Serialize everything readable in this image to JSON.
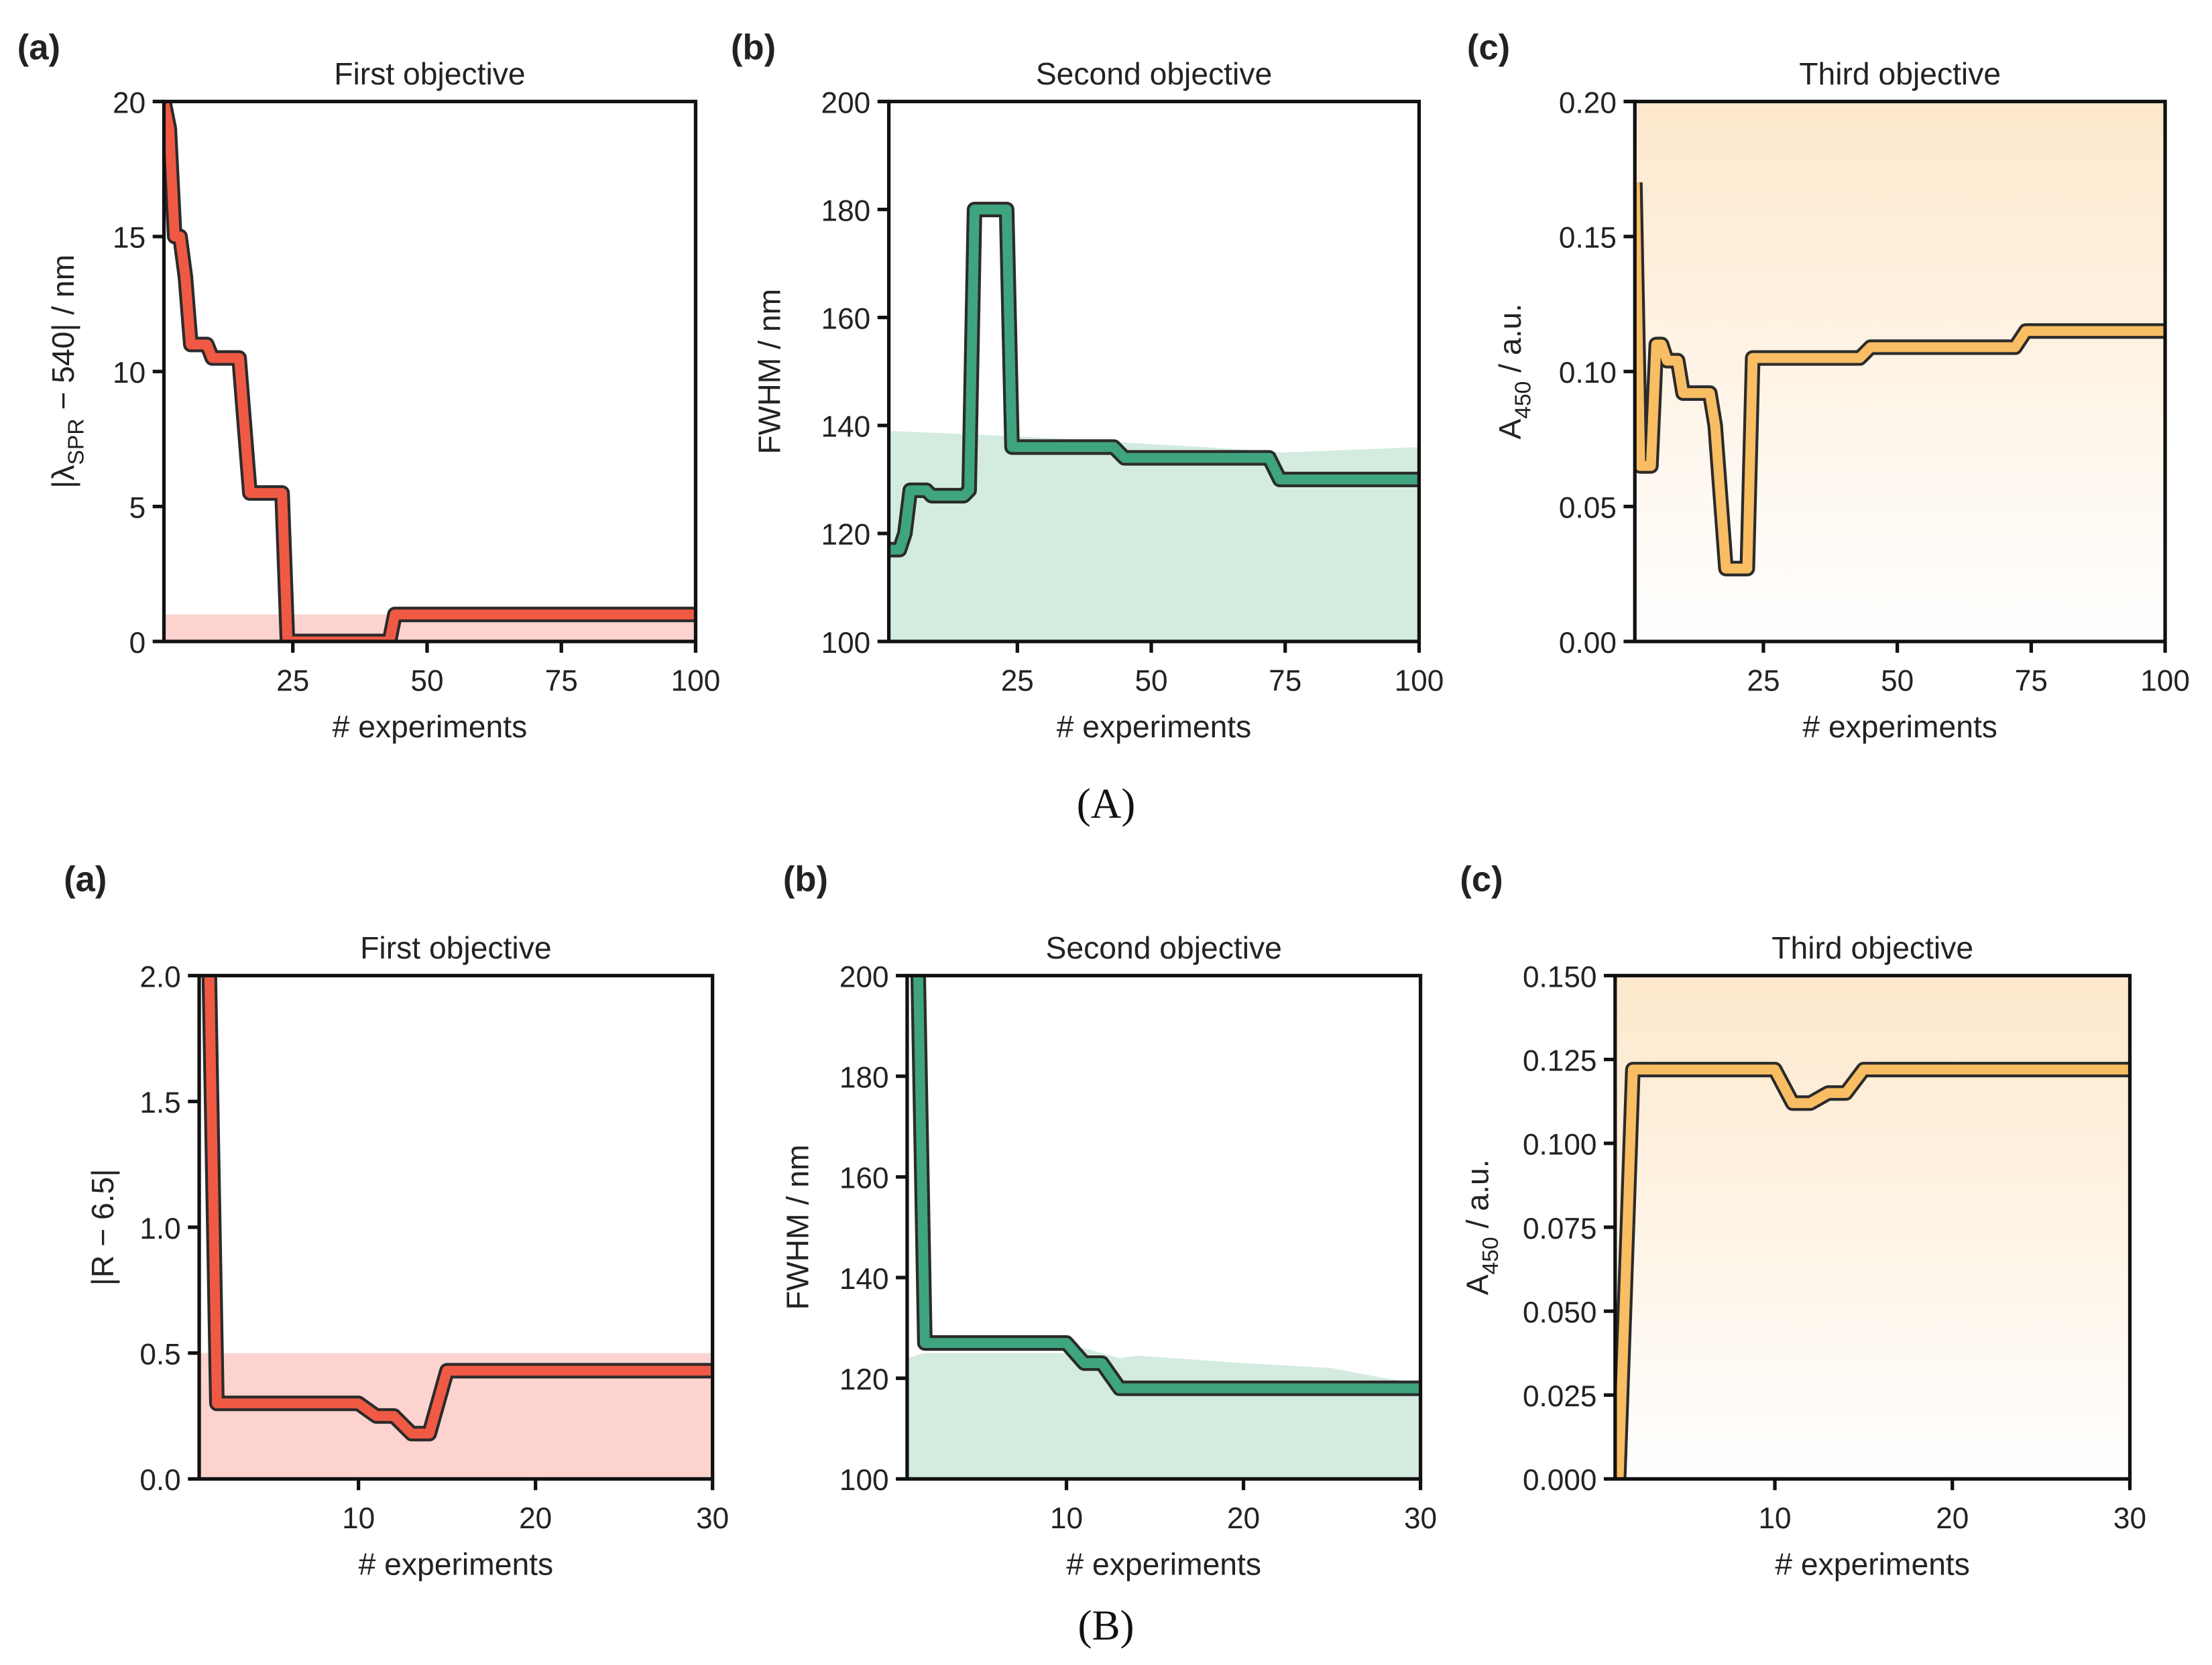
{
  "captions": {
    "A": "(A)",
    "B": "(B)"
  },
  "colors": {
    "red": "#f05a45",
    "red_band": "#fcd3cf",
    "green": "#3fa57e",
    "green_fill": "#d4ece0",
    "orange": "#f9bd63",
    "orange_bg": "#fde8cc",
    "outline": "#2b2b2b"
  },
  "chart_data": [
    {
      "id": "A-a",
      "type": "line",
      "panel_label": "(a)",
      "title": "First objective",
      "xlabel": "# experiments",
      "ylabel": {
        "main": "|λ",
        "sub": "SPR",
        "rest": " − 540| / nm"
      },
      "xlim": [
        1,
        100
      ],
      "ylim": [
        0,
        20
      ],
      "xticks": [
        25,
        50,
        75,
        100
      ],
      "xtick_labels": [
        "25",
        "50",
        "75",
        "100"
      ],
      "yticks": [
        0,
        5,
        10,
        15,
        20
      ],
      "ytick_labels": [
        "0",
        "5",
        "10",
        "15",
        "20"
      ],
      "color": "red",
      "band": [
        0,
        1
      ],
      "x": [
        1,
        2,
        3,
        4,
        5,
        6,
        9,
        10,
        15,
        17,
        23,
        24,
        43,
        44,
        100
      ],
      "y": [
        20,
        19,
        15,
        15,
        13.5,
        11,
        11,
        10.5,
        10.5,
        5.5,
        5.5,
        0,
        0,
        1,
        1
      ]
    },
    {
      "id": "A-b",
      "type": "line",
      "panel_label": "(b)",
      "title": "Second objective",
      "xlabel": "# experiments",
      "ylabel": {
        "main": "FWHM / nm",
        "sub": "",
        "rest": ""
      },
      "xlim": [
        1,
        100
      ],
      "ylim": [
        100,
        200
      ],
      "xticks": [
        25,
        50,
        75,
        100
      ],
      "xtick_labels": [
        "25",
        "50",
        "75",
        "100"
      ],
      "yticks": [
        100,
        120,
        140,
        160,
        180,
        200
      ],
      "ytick_labels": [
        "100",
        "120",
        "140",
        "160",
        "180",
        "200"
      ],
      "color": "green",
      "area_upper": {
        "x": [
          1,
          25,
          60,
          75,
          100
        ],
        "y": [
          139,
          138,
          136,
          135,
          136
        ]
      },
      "x": [
        1,
        3,
        4,
        5,
        8,
        9,
        15,
        16,
        17,
        23,
        24,
        43,
        45,
        72,
        74,
        100
      ],
      "y": [
        117,
        117,
        120,
        128,
        128,
        127,
        127,
        128,
        180,
        180,
        136,
        136,
        134,
        134,
        130,
        130
      ]
    },
    {
      "id": "A-c",
      "type": "line",
      "panel_label": "(c)",
      "title": "Third objective",
      "xlabel": "# experiments",
      "ylabel": {
        "main": "A",
        "sub": "450",
        "rest": " / a.u."
      },
      "xlim": [
        1,
        100
      ],
      "ylim": [
        0,
        0.2
      ],
      "xticks": [
        25,
        50,
        75,
        100
      ],
      "xtick_labels": [
        "25",
        "50",
        "75",
        "100"
      ],
      "yticks": [
        0,
        0.05,
        0.1,
        0.15,
        0.2
      ],
      "ytick_labels": [
        "0.00",
        "0.05",
        "0.10",
        "0.15",
        "0.20"
      ],
      "color": "orange",
      "gradient_bg": true,
      "x": [
        1,
        2,
        4,
        5,
        6,
        7,
        9,
        10,
        15,
        16,
        18,
        22,
        23,
        43,
        45,
        72,
        74,
        100
      ],
      "y": [
        0.17,
        0.065,
        0.065,
        0.11,
        0.11,
        0.104,
        0.104,
        0.092,
        0.092,
        0.08,
        0.027,
        0.027,
        0.105,
        0.105,
        0.109,
        0.109,
        0.115,
        0.115
      ]
    },
    {
      "id": "B-a",
      "type": "line",
      "panel_label": "(a)",
      "title": "First objective",
      "xlabel": "# experiments",
      "ylabel": {
        "main": "|R − 6.5|",
        "sub": "",
        "rest": ""
      },
      "xlim": [
        1,
        30
      ],
      "ylim": [
        0,
        2
      ],
      "xticks": [
        10,
        20,
        30
      ],
      "xtick_labels": [
        "10",
        "20",
        "30"
      ],
      "yticks": [
        0,
        0.5,
        1,
        1.5,
        2
      ],
      "ytick_labels": [
        "0.0",
        "0.5",
        "1.0",
        "1.5",
        "2.0"
      ],
      "color": "red",
      "band": [
        0,
        0.5
      ],
      "x": [
        1.5,
        2,
        10,
        11,
        12,
        13,
        14,
        15,
        30
      ],
      "y": [
        2.3,
        0.3,
        0.3,
        0.25,
        0.25,
        0.18,
        0.18,
        0.43,
        0.43
      ]
    },
    {
      "id": "B-b",
      "type": "line",
      "panel_label": "(b)",
      "title": "Second objective",
      "xlabel": "# experiments",
      "ylabel": {
        "main": "FWHM / nm",
        "sub": "",
        "rest": ""
      },
      "xlim": [
        1,
        30
      ],
      "ylim": [
        100,
        200
      ],
      "xticks": [
        10,
        20,
        30
      ],
      "xtick_labels": [
        "10",
        "20",
        "30"
      ],
      "yticks": [
        100,
        120,
        140,
        160,
        180,
        200
      ],
      "ytick_labels": [
        "100",
        "120",
        "140",
        "160",
        "180",
        "200"
      ],
      "color": "green",
      "area_upper": {
        "x": [
          1,
          2,
          10,
          11,
          13,
          14,
          20,
          25,
          28,
          30
        ],
        "y": [
          124,
          125,
          125,
          126,
          124,
          124.5,
          123,
          122,
          120,
          119
        ]
      },
      "x": [
        1.6,
        2,
        10,
        11,
        12,
        13,
        30
      ],
      "y": [
        205,
        127,
        127,
        123,
        123,
        118,
        118
      ]
    },
    {
      "id": "B-c",
      "type": "line",
      "panel_label": "(c)",
      "title": "Third objective",
      "xlabel": "# experiments",
      "ylabel": {
        "main": "A",
        "sub": "450",
        "rest": " / a.u."
      },
      "xlim": [
        1,
        30
      ],
      "ylim": [
        0,
        0.15
      ],
      "xticks": [
        10,
        20,
        30
      ],
      "xtick_labels": [
        "10",
        "20",
        "30"
      ],
      "yticks": [
        0,
        0.025,
        0.05,
        0.075,
        0.1,
        0.125,
        0.15
      ],
      "ytick_labels": [
        "0.000",
        "0.025",
        "0.050",
        "0.075",
        "0.100",
        "0.125",
        "0.150"
      ],
      "color": "orange",
      "gradient_bg": true,
      "x": [
        1.2,
        2,
        10,
        11,
        12,
        13,
        14,
        15,
        30
      ],
      "y": [
        0,
        0.122,
        0.122,
        0.112,
        0.112,
        0.115,
        0.115,
        0.122,
        0.122
      ]
    }
  ]
}
